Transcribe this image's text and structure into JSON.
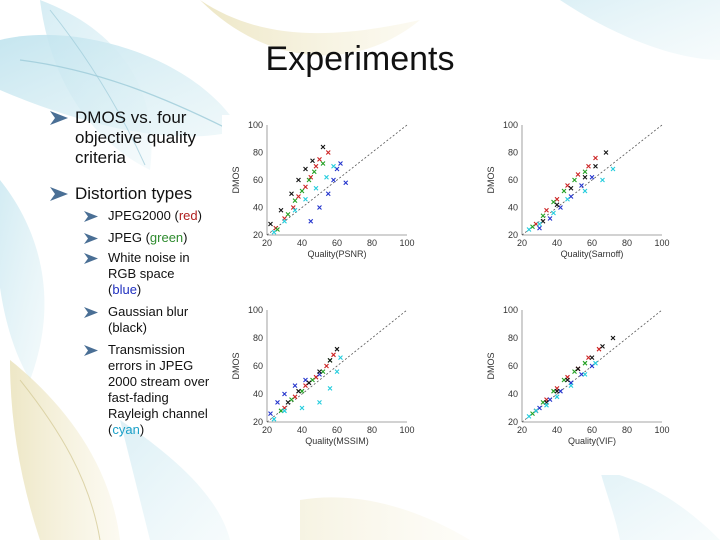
{
  "slide": {
    "title": "Experiments",
    "bullets": [
      {
        "text": "DMOS vs. four objective quality criteria"
      },
      {
        "text": "Distortion types"
      }
    ],
    "sub_bullets": [
      {
        "label": "JPEG2000 (",
        "colored": "red",
        "suffix": ")",
        "color": "#b02020"
      },
      {
        "label": "JPEG (",
        "colored": "green",
        "suffix": ")",
        "color": "#2e8b2e"
      },
      {
        "label": "White noise in RGB space (",
        "colored": "blue",
        "suffix": ")",
        "color": "#2030c0"
      },
      {
        "label": "Gaussian blur (black)",
        "colored": "",
        "suffix": "",
        "color": "#111111"
      },
      {
        "label": "Transmission errors in JPEG 2000 stream over fast-fading Rayleigh channel (",
        "colored": "cyan",
        "suffix": ")",
        "color": "#1aa0c8"
      }
    ]
  },
  "chart_data": [
    {
      "type": "scatter",
      "xlabel": "Quality(PSNR)",
      "ylabel": "DMOS",
      "xlim": [
        20,
        100
      ],
      "ylim": [
        20,
        100
      ],
      "xticks": [
        "20",
        "40",
        "60",
        "80",
        "100"
      ],
      "yticks": [
        "20",
        "40",
        "60",
        "80",
        "100"
      ],
      "series": [
        {
          "color": "#cc2222",
          "points": [
            [
              25,
              25
            ],
            [
              30,
              32
            ],
            [
              35,
              40
            ],
            [
              38,
              48
            ],
            [
              42,
              55
            ],
            [
              45,
              62
            ],
            [
              48,
              70
            ],
            [
              50,
              75
            ],
            [
              55,
              80
            ]
          ]
        },
        {
          "color": "#22a022",
          "points": [
            [
              26,
              24
            ],
            [
              32,
              35
            ],
            [
              36,
              45
            ],
            [
              40,
              52
            ],
            [
              44,
              60
            ],
            [
              47,
              66
            ],
            [
              52,
              72
            ]
          ]
        },
        {
          "color": "#2233cc",
          "points": [
            [
              45,
              30
            ],
            [
              50,
              40
            ],
            [
              55,
              50
            ],
            [
              58,
              60
            ],
            [
              60,
              68
            ],
            [
              62,
              72
            ],
            [
              65,
              58
            ]
          ]
        },
        {
          "color": "#111111",
          "points": [
            [
              22,
              28
            ],
            [
              28,
              38
            ],
            [
              34,
              50
            ],
            [
              38,
              60
            ],
            [
              42,
              68
            ],
            [
              46,
              74
            ],
            [
              52,
              84
            ]
          ]
        },
        {
          "color": "#22ccdd",
          "points": [
            [
              24,
              22
            ],
            [
              30,
              30
            ],
            [
              36,
              38
            ],
            [
              42,
              46
            ],
            [
              48,
              54
            ],
            [
              54,
              62
            ],
            [
              58,
              70
            ]
          ]
        }
      ]
    },
    {
      "type": "scatter",
      "xlabel": "Quality(Sarnoff)",
      "ylabel": "DMOS",
      "xlim": [
        20,
        100
      ],
      "ylim": [
        20,
        100
      ],
      "xticks": [
        "20",
        "40",
        "60",
        "80",
        "100"
      ],
      "yticks": [
        "20",
        "40",
        "60",
        "80",
        "100"
      ],
      "series": [
        {
          "color": "#cc2222",
          "points": [
            [
              28,
              28
            ],
            [
              34,
              38
            ],
            [
              40,
              46
            ],
            [
              46,
              56
            ],
            [
              52,
              64
            ],
            [
              58,
              70
            ],
            [
              62,
              76
            ]
          ]
        },
        {
          "color": "#22a022",
          "points": [
            [
              26,
              26
            ],
            [
              32,
              34
            ],
            [
              38,
              44
            ],
            [
              44,
              52
            ],
            [
              50,
              60
            ],
            [
              56,
              66
            ]
          ]
        },
        {
          "color": "#2233cc",
          "points": [
            [
              30,
              25
            ],
            [
              36,
              32
            ],
            [
              42,
              40
            ],
            [
              48,
              48
            ],
            [
              54,
              56
            ],
            [
              60,
              62
            ]
          ]
        },
        {
          "color": "#111111",
          "points": [
            [
              32,
              30
            ],
            [
              40,
              42
            ],
            [
              48,
              54
            ],
            [
              56,
              62
            ],
            [
              62,
              70
            ],
            [
              68,
              80
            ]
          ]
        },
        {
          "color": "#22ccdd",
          "points": [
            [
              24,
              24
            ],
            [
              30,
              28
            ],
            [
              38,
              36
            ],
            [
              46,
              46
            ],
            [
              56,
              52
            ],
            [
              66,
              60
            ],
            [
              72,
              68
            ]
          ]
        }
      ]
    },
    {
      "type": "scatter",
      "xlabel": "Quality(MSSIM)",
      "ylabel": "DMOS",
      "xlim": [
        20,
        100
      ],
      "ylim": [
        20,
        100
      ],
      "xticks": [
        "20",
        "40",
        "60",
        "80",
        "100"
      ],
      "yticks": [
        "20",
        "40",
        "60",
        "80",
        "100"
      ],
      "series": [
        {
          "color": "#cc2222",
          "points": [
            [
              30,
              30
            ],
            [
              36,
              38
            ],
            [
              42,
              46
            ],
            [
              48,
              52
            ],
            [
              54,
              60
            ],
            [
              58,
              68
            ]
          ]
        },
        {
          "color": "#22a022",
          "points": [
            [
              28,
              28
            ],
            [
              34,
              36
            ],
            [
              40,
              42
            ],
            [
              46,
              50
            ],
            [
              52,
              56
            ],
            [
              56,
              64
            ]
          ]
        },
        {
          "color": "#2233cc",
          "points": [
            [
              22,
              26
            ],
            [
              26,
              34
            ],
            [
              30,
              40
            ],
            [
              36,
              46
            ],
            [
              42,
              50
            ],
            [
              50,
              54
            ]
          ]
        },
        {
          "color": "#111111",
          "points": [
            [
              32,
              34
            ],
            [
              38,
              42
            ],
            [
              44,
              48
            ],
            [
              50,
              56
            ],
            [
              56,
              64
            ],
            [
              60,
              72
            ]
          ]
        },
        {
          "color": "#22ccdd",
          "points": [
            [
              24,
              22
            ],
            [
              30,
              28
            ],
            [
              40,
              30
            ],
            [
              50,
              34
            ],
            [
              56,
              44
            ],
            [
              60,
              56
            ],
            [
              62,
              66
            ]
          ]
        }
      ]
    },
    {
      "type": "scatter",
      "xlabel": "Quality(VIF)",
      "ylabel": "DMOS",
      "xlim": [
        20,
        100
      ],
      "ylim": [
        20,
        100
      ],
      "xticks": [
        "20",
        "40",
        "60",
        "80",
        "100"
      ],
      "yticks": [
        "20",
        "40",
        "60",
        "80",
        "100"
      ],
      "series": [
        {
          "color": "#cc2222",
          "points": [
            [
              28,
              28
            ],
            [
              34,
              36
            ],
            [
              40,
              44
            ],
            [
              46,
              52
            ],
            [
              52,
              58
            ],
            [
              58,
              66
            ],
            [
              64,
              72
            ]
          ]
        },
        {
          "color": "#22a022",
          "points": [
            [
              26,
              26
            ],
            [
              32,
              34
            ],
            [
              38,
              42
            ],
            [
              44,
              50
            ],
            [
              50,
              56
            ],
            [
              56,
              62
            ]
          ]
        },
        {
          "color": "#2233cc",
          "points": [
            [
              30,
              30
            ],
            [
              36,
              36
            ],
            [
              42,
              42
            ],
            [
              48,
              48
            ],
            [
              54,
              54
            ],
            [
              60,
              60
            ]
          ]
        },
        {
          "color": "#111111",
          "points": [
            [
              34,
              34
            ],
            [
              40,
              42
            ],
            [
              46,
              50
            ],
            [
              52,
              58
            ],
            [
              60,
              66
            ],
            [
              66,
              74
            ],
            [
              72,
              80
            ]
          ]
        },
        {
          "color": "#22ccdd",
          "points": [
            [
              24,
              24
            ],
            [
              28,
              28
            ],
            [
              34,
              32
            ],
            [
              40,
              38
            ],
            [
              48,
              46
            ],
            [
              56,
              54
            ],
            [
              62,
              62
            ]
          ]
        }
      ]
    }
  ]
}
